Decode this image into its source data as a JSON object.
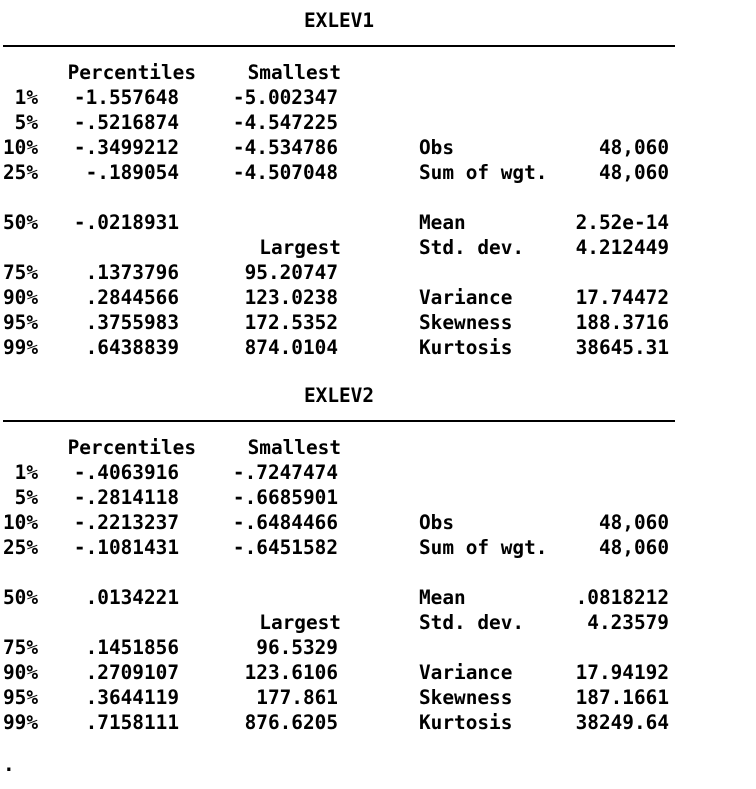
{
  "colors": {
    "background": "#ffffff",
    "text": "#000000",
    "rule": "#000000"
  },
  "prompt": ".",
  "sections": [
    {
      "title": "EXLEV1",
      "rows": [
        {
          "pct_col_header": "Percentiles",
          "extreme_col_header": "Smallest"
        },
        {
          "pct": "1%",
          "percentile": "-1.557648",
          "extreme": "-5.002347"
        },
        {
          "pct": "5%",
          "percentile": "-.5216874",
          "extreme": "-4.547225"
        },
        {
          "pct": "10%",
          "percentile": "-.3499212",
          "extreme": "-4.534786",
          "stat": "Obs",
          "value": "48,060"
        },
        {
          "pct": "25%",
          "percentile": "-.189054",
          "extreme": "-4.507048",
          "stat": "Sum of wgt.",
          "value": "48,060"
        },
        {},
        {
          "pct": "50%",
          "percentile": "-.0218931",
          "stat": "Mean",
          "value": "2.52e-14"
        },
        {
          "extreme_col_header": "Largest",
          "stat": "Std. dev.",
          "value": "4.212449"
        },
        {
          "pct": "75%",
          "percentile": ".1373796",
          "extreme": "95.20747"
        },
        {
          "pct": "90%",
          "percentile": ".2844566",
          "extreme": "123.0238",
          "stat": "Variance",
          "value": "17.74472"
        },
        {
          "pct": "95%",
          "percentile": ".3755983",
          "extreme": "172.5352",
          "stat": "Skewness",
          "value": "188.3716"
        },
        {
          "pct": "99%",
          "percentile": ".6438839",
          "extreme": "874.0104",
          "stat": "Kurtosis",
          "value": "38645.31"
        }
      ]
    },
    {
      "title": "EXLEV2",
      "rows": [
        {
          "pct_col_header": "Percentiles",
          "extreme_col_header": "Smallest"
        },
        {
          "pct": "1%",
          "percentile": "-.4063916",
          "extreme": "-.7247474"
        },
        {
          "pct": "5%",
          "percentile": "-.2814118",
          "extreme": "-.6685901"
        },
        {
          "pct": "10%",
          "percentile": "-.2213237",
          "extreme": "-.6484466",
          "stat": "Obs",
          "value": "48,060"
        },
        {
          "pct": "25%",
          "percentile": "-.1081431",
          "extreme": "-.6451582",
          "stat": "Sum of wgt.",
          "value": "48,060"
        },
        {},
        {
          "pct": "50%",
          "percentile": ".0134221",
          "stat": "Mean",
          "value": ".0818212"
        },
        {
          "extreme_col_header": "Largest",
          "stat": "Std. dev.",
          "value": "4.23579"
        },
        {
          "pct": "75%",
          "percentile": ".1451856",
          "extreme": "96.5329"
        },
        {
          "pct": "90%",
          "percentile": ".2709107",
          "extreme": "123.6106",
          "stat": "Variance",
          "value": "17.94192"
        },
        {
          "pct": "95%",
          "percentile": ".3644119",
          "extreme": "177.861",
          "stat": "Skewness",
          "value": "187.1661"
        },
        {
          "pct": "99%",
          "percentile": ".7158111",
          "extreme": "876.6205",
          "stat": "Kurtosis",
          "value": "38249.64"
        }
      ]
    }
  ]
}
